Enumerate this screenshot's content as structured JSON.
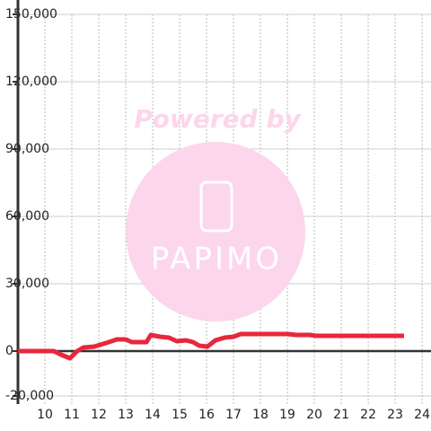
{
  "chart_data": {
    "type": "line",
    "x": [
      9.0,
      10.33,
      10.6,
      10.93,
      11.2,
      11.43,
      11.83,
      12.27,
      12.67,
      13.0,
      13.23,
      13.77,
      13.93,
      14.27,
      14.6,
      14.9,
      15.23,
      15.5,
      15.73,
      16.03,
      16.33,
      16.67,
      17.0,
      17.27,
      19.0,
      19.33,
      19.83,
      20.07,
      23.33
    ],
    "series": [
      {
        "color": "#e8273d",
        "values": [
          0,
          0,
          -1600,
          -3200,
          0,
          1600,
          2000,
          3600,
          5200,
          5200,
          4000,
          4000,
          7200,
          6400,
          6000,
          4400,
          4800,
          4000,
          2400,
          2000,
          4800,
          6000,
          6400,
          7600,
          7600,
          7200,
          7200,
          6800,
          6800
        ]
      }
    ],
    "xlim": [
      9,
      24.33
    ],
    "xticks": [
      10,
      11,
      12,
      13,
      14,
      15,
      16,
      17,
      18,
      19,
      20,
      21,
      22,
      23,
      24
    ],
    "ylim": [
      -23600,
      150000
    ],
    "yticks": [
      {
        "value": -20000,
        "label": "-20,000"
      },
      0,
      {
        "value": 30000,
        "label": "30,000"
      },
      {
        "value": 60000,
        "label": "60,000"
      },
      {
        "value": 90000,
        "label": "90,000"
      },
      {
        "value": 120000,
        "label": "120,000"
      },
      {
        "value": 150000,
        "label": "150,000"
      }
    ],
    "grid": true,
    "watermark": {
      "line1": "Powered by",
      "line2": "PAPIMO"
    }
  }
}
